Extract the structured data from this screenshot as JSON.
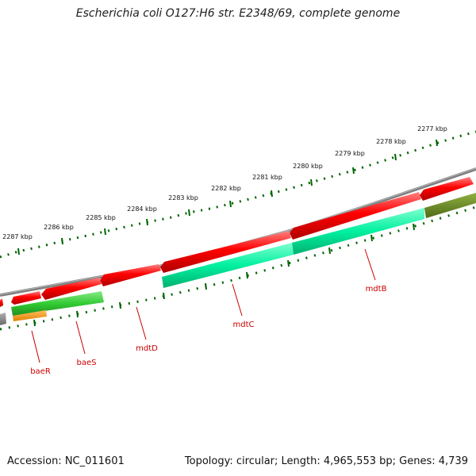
{
  "title": "Escherichia coli O127:H6 str. E2348/69, complete genome",
  "footer": {
    "accession": "Accession: NC_011601",
    "summary": "Topology: circular; Length: 4,965,553 bp; Genes: 4,739"
  },
  "map": {
    "ticks": [
      {
        "label": "2277 kbp"
      },
      {
        "label": "2278 kbp"
      },
      {
        "label": "2279 kbp"
      },
      {
        "label": "2280 kbp"
      },
      {
        "label": "2281 kbp"
      },
      {
        "label": "2282 kbp"
      },
      {
        "label": "2283 kbp"
      },
      {
        "label": "2284 kbp"
      },
      {
        "label": "2285 kbp"
      },
      {
        "label": "2286 kbp"
      },
      {
        "label": "2287 kbp"
      }
    ],
    "genes": [
      {
        "name": "mdtB"
      },
      {
        "name": "mdtC"
      },
      {
        "name": "mdtD"
      },
      {
        "name": "baeS"
      },
      {
        "name": "baeR"
      }
    ],
    "colors": {
      "backbone": "#808080",
      "forward_cds": "#ff0000",
      "gene_mdtB_mdtC": "#00ff99",
      "gene_baeS": "#33cc33",
      "gene_baeR": "#ff9900",
      "gene_olive": "#6b8e23",
      "tick": "#006400",
      "label": "#cc0000"
    }
  }
}
